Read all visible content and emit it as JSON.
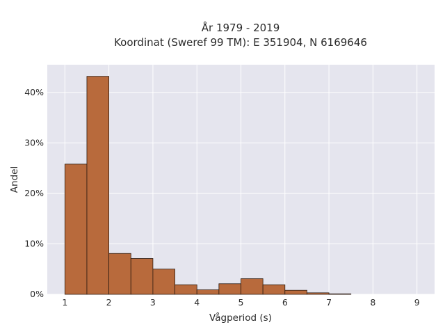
{
  "chart_data": {
    "type": "bar",
    "title_line1": "År 1979 - 2019",
    "title_line2": "Koordinat (Sweref 99 TM): E 351904, N 6169646",
    "xlabel": "Vågperiod (s)",
    "ylabel": "Andel",
    "xlim": [
      0.6,
      9.4
    ],
    "ylim": [
      0,
      45.5
    ],
    "grid": true,
    "x_ticks": [
      1,
      2,
      3,
      4,
      5,
      6,
      7,
      8,
      9
    ],
    "x_tick_labels": [
      "1",
      "2",
      "3",
      "4",
      "5",
      "6",
      "7",
      "8",
      "9"
    ],
    "y_ticks": [
      0,
      10,
      20,
      30,
      40
    ],
    "y_tick_labels": [
      "0%",
      "10%",
      "20%",
      "30%",
      "40%"
    ],
    "bin_edges": [
      1.0,
      1.5,
      2.0,
      2.5,
      3.0,
      3.5,
      4.0,
      4.5,
      5.0,
      5.5,
      6.0,
      6.5,
      7.0,
      7.5
    ],
    "values": [
      25.8,
      43.2,
      8.1,
      7.1,
      5.0,
      1.9,
      0.9,
      2.1,
      3.1,
      1.9,
      0.8,
      0.3,
      0.1
    ],
    "bar_color": "#b86a3c",
    "bar_edge_color": "#2b1a10",
    "plot_background": "#e5e5ee",
    "grid_color": "#ffffff"
  }
}
